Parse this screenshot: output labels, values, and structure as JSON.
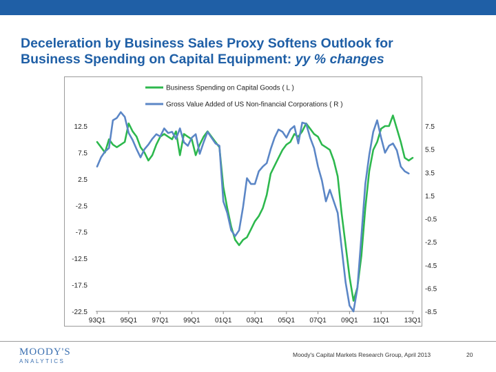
{
  "slide": {
    "title_line1": "Deceleration by Business Sales Proxy Softens Outlook for",
    "title_line2_plain": "Business Spending on Capital Equipment: ",
    "title_line2_italic": "yy % changes",
    "accent_color": "#1f5fa6"
  },
  "footer": {
    "logo_main": "MOODY'S",
    "logo_sub": "ANALYTICS",
    "source_text": "Moody's Capital Markets Research Group,  April 2013",
    "page_number": "20"
  },
  "chart_data": {
    "type": "line",
    "title": "",
    "x_ticks": [
      "93Q1",
      "95Q1",
      "97Q1",
      "99Q1",
      "01Q1",
      "03Q1",
      "05Q1",
      "07Q1",
      "09Q1",
      "11Q1",
      "13Q1"
    ],
    "x_start": 1993.0,
    "x_end": 2013.0,
    "left_axis": {
      "ticks": [
        "12.5",
        "7.5",
        "2.5",
        "-2.5",
        "-7.5",
        "-12.5",
        "-17.5",
        "-22.5"
      ],
      "ylim": [
        -22.5,
        12.5
      ]
    },
    "right_axis": {
      "ticks": [
        "7.5",
        "5.5",
        "3.5",
        "1.5",
        "-0.5",
        "-2.5",
        "-4.5",
        "-6.5",
        "-8.5"
      ],
      "ylim": [
        -8.5,
        7.5
      ]
    },
    "series": [
      {
        "name": "Business Spending on Capital Goods ( L )",
        "axis": "left",
        "color": "#2db84d",
        "x": [
          1993.0,
          1993.25,
          1993.5,
          1993.75,
          1994.0,
          1994.25,
          1994.5,
          1994.75,
          1995.0,
          1995.25,
          1995.5,
          1995.75,
          1996.0,
          1996.25,
          1996.5,
          1996.75,
          1997.0,
          1997.25,
          1997.5,
          1997.75,
          1998.0,
          1998.25,
          1998.5,
          1998.75,
          1999.0,
          1999.25,
          1999.5,
          1999.75,
          2000.0,
          2000.25,
          2000.5,
          2000.75,
          2001.0,
          2001.25,
          2001.5,
          2001.75,
          2002.0,
          2002.25,
          2002.5,
          2002.75,
          2003.0,
          2003.25,
          2003.5,
          2003.75,
          2004.0,
          2004.25,
          2004.5,
          2004.75,
          2005.0,
          2005.25,
          2005.5,
          2005.75,
          2006.0,
          2006.25,
          2006.5,
          2006.75,
          2007.0,
          2007.25,
          2007.5,
          2007.75,
          2008.0,
          2008.25,
          2008.5,
          2008.75,
          2009.0,
          2009.25,
          2009.5,
          2009.75,
          2010.0,
          2010.25,
          2010.5,
          2010.75,
          2011.0,
          2011.25,
          2011.5,
          2011.75,
          2012.0,
          2012.25,
          2012.5,
          2012.75,
          2013.0
        ],
        "values": [
          9.5,
          8.5,
          7.5,
          10.0,
          9.0,
          8.5,
          9.0,
          9.5,
          13.0,
          11.5,
          10.5,
          8.5,
          7.5,
          6.0,
          7.0,
          9.0,
          10.5,
          11.0,
          10.5,
          10.0,
          11.5,
          7.0,
          11.0,
          10.5,
          10.0,
          7.0,
          9.0,
          10.5,
          11.5,
          10.5,
          9.5,
          8.5,
          1.0,
          -3.0,
          -6.5,
          -9.0,
          -10.0,
          -9.0,
          -8.5,
          -7.0,
          -5.5,
          -4.5,
          -3.0,
          -0.5,
          3.5,
          5.0,
          6.5,
          8.0,
          9.0,
          9.5,
          11.0,
          10.5,
          11.5,
          13.0,
          12.0,
          11.0,
          10.5,
          9.0,
          8.5,
          8.0,
          6.0,
          3.0,
          -4.0,
          -10.0,
          -16.0,
          -20.5,
          -18.0,
          -12.0,
          -3.0,
          4.0,
          8.0,
          9.5,
          12.0,
          12.5,
          12.5,
          14.5,
          12.0,
          9.5,
          6.5,
          6.0,
          6.5
        ]
      },
      {
        "name": "Gross Value Added of US Non-financial Corporations ( R )",
        "axis": "right",
        "color": "#5b86c6",
        "x": [
          1993.0,
          1993.25,
          1993.5,
          1993.75,
          1994.0,
          1994.25,
          1994.5,
          1994.75,
          1995.0,
          1995.25,
          1995.5,
          1995.75,
          1996.0,
          1996.25,
          1996.5,
          1996.75,
          1997.0,
          1997.25,
          1997.5,
          1997.75,
          1998.0,
          1998.25,
          1998.5,
          1998.75,
          1999.0,
          1999.25,
          1999.5,
          1999.75,
          2000.0,
          2000.25,
          2000.5,
          2000.75,
          2001.0,
          2001.25,
          2001.5,
          2001.75,
          2002.0,
          2002.25,
          2002.5,
          2002.75,
          2003.0,
          2003.25,
          2003.5,
          2003.75,
          2004.0,
          2004.25,
          2004.5,
          2004.75,
          2005.0,
          2005.25,
          2005.5,
          2005.75,
          2006.0,
          2006.25,
          2006.5,
          2006.75,
          2007.0,
          2007.25,
          2007.5,
          2007.75,
          2008.0,
          2008.25,
          2008.5,
          2008.75,
          2009.0,
          2009.25,
          2009.5,
          2009.75,
          2010.0,
          2010.25,
          2010.5,
          2010.75,
          2011.0,
          2011.25,
          2011.5,
          2011.75,
          2012.0,
          2012.25,
          2012.5,
          2012.75
        ],
        "values": [
          4.0,
          4.8,
          5.3,
          5.6,
          8.0,
          8.2,
          8.7,
          8.3,
          6.9,
          6.3,
          5.5,
          4.8,
          5.5,
          5.9,
          6.4,
          6.8,
          6.6,
          7.3,
          6.9,
          7.0,
          6.4,
          7.3,
          6.1,
          5.8,
          6.5,
          6.8,
          5.1,
          6.1,
          7.0,
          6.5,
          6.0,
          5.8,
          1.0,
          0.0,
          -1.5,
          -2.0,
          -1.5,
          0.5,
          3.0,
          2.5,
          2.5,
          3.6,
          4.0,
          4.3,
          5.5,
          6.5,
          7.2,
          7.0,
          6.5,
          7.2,
          7.5,
          6.0,
          7.8,
          7.7,
          6.5,
          5.6,
          4.0,
          2.8,
          1.0,
          2.0,
          1.0,
          0.0,
          -3.0,
          -6.0,
          -8.0,
          -8.5,
          -6.5,
          -2.0,
          2.5,
          5.0,
          7.0,
          8.0,
          6.5,
          5.2,
          5.8,
          6.0,
          5.4,
          4.0,
          3.6,
          3.4
        ]
      }
    ],
    "grid": false,
    "legend_position": "top"
  }
}
